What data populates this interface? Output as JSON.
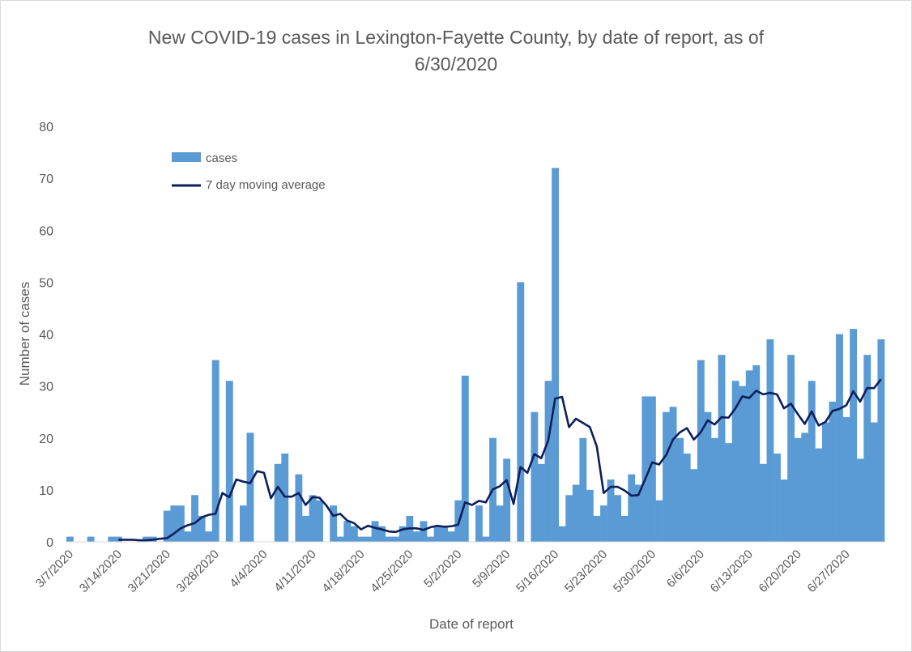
{
  "chart_data": {
    "type": "bar",
    "title": "New COVID-19 cases in Lexington-Fayette County, by date of report, as of 6/30/2020",
    "title_lines": [
      "New COVID-19 cases in Lexington-Fayette County, by date of report, as of",
      "6/30/2020"
    ],
    "xlabel": "Date of report",
    "ylabel": "Number of cases",
    "ylim": [
      0,
      80
    ],
    "yticks": [
      0,
      10,
      20,
      30,
      40,
      50,
      60,
      70,
      80
    ],
    "grid": false,
    "legend_position": "top-left",
    "x_start": "3/7/2020",
    "x_end": "6/30/2020",
    "xtick_labels": [
      "3/7/2020",
      "3/14/2020",
      "3/21/2020",
      "3/28/2020",
      "4/4/2020",
      "4/11/2020",
      "4/18/2020",
      "4/25/2020",
      "5/2/2020",
      "5/9/2020",
      "5/16/2020",
      "5/23/2020",
      "5/30/2020",
      "6/6/2020",
      "6/13/2020",
      "6/20/2020",
      "6/27/2020"
    ],
    "series": [
      {
        "name": "cases",
        "type": "bar",
        "color": "#5b9bd5",
        "values": [
          1,
          0,
          0,
          1,
          0,
          0,
          1,
          1,
          0,
          0,
          0,
          1,
          1,
          0,
          6,
          7,
          7,
          2,
          9,
          5,
          2,
          35,
          0,
          31,
          0,
          7,
          21,
          0,
          0,
          0,
          15,
          17,
          0,
          13,
          5,
          9,
          8,
          0,
          7,
          1,
          4,
          3,
          1,
          1,
          4,
          3,
          1,
          1,
          3,
          5,
          2,
          4,
          1,
          3,
          3,
          2,
          8,
          32,
          0,
          7,
          1,
          20,
          7,
          16,
          0,
          50,
          0,
          25,
          15,
          31,
          72,
          3,
          9,
          11,
          20,
          10,
          5,
          7,
          12,
          9,
          5,
          13,
          11,
          28,
          28,
          8,
          25,
          26,
          20,
          17,
          14,
          35,
          25,
          20,
          36,
          19,
          31,
          30,
          33,
          34,
          15,
          39,
          17,
          12,
          36,
          20,
          21,
          31,
          18,
          23,
          27,
          40,
          24,
          41,
          16,
          36,
          23,
          39
        ]
      },
      {
        "name": "7 day moving average",
        "type": "line",
        "color": "#0d1f5c",
        "values": [
          null,
          null,
          null,
          null,
          null,
          null,
          null,
          0.4,
          0.4,
          0.4,
          0.3,
          0.3,
          0.4,
          0.6,
          0.7,
          1.6,
          2.6,
          3.2,
          3.6,
          4.7,
          5.2,
          5.4,
          9.4,
          8.6,
          12.0,
          11.6,
          11.3,
          13.6,
          13.3,
          8.4,
          10.6,
          8.7,
          8.7,
          9.4,
          7.1,
          8.6,
          8.5,
          7.0,
          5.0,
          5.4,
          4.1,
          3.6,
          2.4,
          3.1,
          2.7,
          2.4,
          2.0,
          1.9,
          2.4,
          2.6,
          2.6,
          2.3,
          2.8,
          3.1,
          2.9,
          3.0,
          3.3,
          7.6,
          7.1,
          7.9,
          7.6,
          10.1,
          10.7,
          11.9,
          7.3,
          14.4,
          13.3,
          16.9,
          16.1,
          19.5,
          27.6,
          27.9,
          22.1,
          23.7,
          22.9,
          22.1,
          18.4,
          9.4,
          10.6,
          10.6,
          9.9,
          8.9,
          9.0,
          12.1,
          15.3,
          14.9,
          16.7,
          19.7,
          21.1,
          21.9,
          19.7,
          21.1,
          23.4,
          22.6,
          24.0,
          23.9,
          25.7,
          28.0,
          27.7,
          29.1,
          28.4,
          28.7,
          28.4,
          25.7,
          26.6,
          24.6,
          22.7,
          25.1,
          22.4,
          23.1,
          25.2,
          25.6,
          26.3,
          29.0,
          27.0,
          29.6,
          29.6,
          31.3
        ]
      }
    ]
  }
}
